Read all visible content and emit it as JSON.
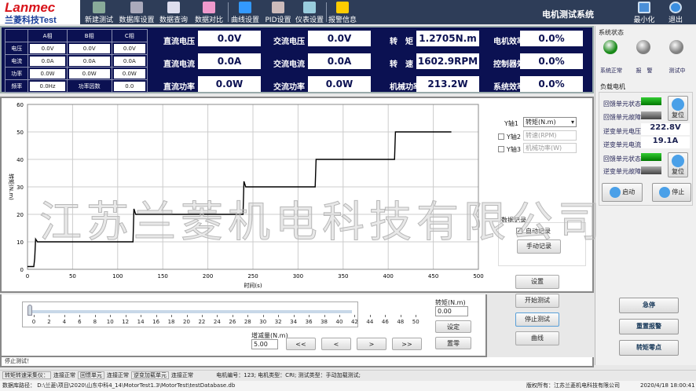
{
  "app": {
    "title": "电机测试系统",
    "logo_top": "Lanmec",
    "logo_bottom": "兰菱科技Test",
    "watermark": "江苏兰菱机电科技有限公司"
  },
  "toolbar": [
    {
      "label": "新建测试",
      "icon": "new-doc-icon"
    },
    {
      "label": "数据库设置",
      "icon": "database-icon"
    },
    {
      "label": "数据查询",
      "icon": "search-icon"
    },
    {
      "label": "数据对比",
      "icon": "compare-icon"
    },
    {
      "label": "曲线设置",
      "icon": "tools-icon"
    },
    {
      "label": "PID设置",
      "icon": "pid-icon"
    },
    {
      "label": "仪表设置",
      "icon": "meter-icon"
    },
    {
      "label": "报警信息",
      "icon": "warning-icon"
    }
  ],
  "window": {
    "minimize": "最小化",
    "exit": "退出"
  },
  "phase": {
    "headers": [
      "",
      "A相",
      "B相",
      "C相"
    ],
    "rows": [
      {
        "label": "电压",
        "values": [
          "0.0V",
          "0.0V",
          "0.0V"
        ]
      },
      {
        "label": "电流",
        "values": [
          "0.0A",
          "0.0A",
          "0.0A"
        ]
      },
      {
        "label": "功率",
        "values": [
          "0.0W",
          "0.0W",
          "0.0W"
        ]
      }
    ],
    "freq_label": "频率",
    "freq": "0.0Hz",
    "pf_label": "功率因数",
    "pf": "0.0"
  },
  "meters": [
    [
      {
        "label": "直流电压",
        "value": "0.0V"
      },
      {
        "label": "直流电流",
        "value": "0.0A"
      },
      {
        "label": "直流功率",
        "value": "0.0W"
      }
    ],
    [
      {
        "label": "交流电压",
        "value": "0.0V"
      },
      {
        "label": "交流电流",
        "value": "0.0A"
      },
      {
        "label": "交流功率",
        "value": "0.0W"
      }
    ],
    [
      {
        "label": "转　矩",
        "value": "1.2705N.m"
      },
      {
        "label": "转　速",
        "value": "1602.9RPM"
      },
      {
        "label": "机械功率",
        "value": "213.2W"
      }
    ],
    [
      {
        "label": "电机效率",
        "value": "0.0%"
      },
      {
        "label": "控制器效率",
        "value": "0.0%"
      },
      {
        "label": "系统效率",
        "value": "0.0%"
      }
    ]
  ],
  "system_status": {
    "title": "系统状态",
    "leds": [
      {
        "label": "系统正常",
        "color": "#1a8a1a"
      },
      {
        "label": "报　警",
        "color": "#808080"
      },
      {
        "label": "测试中",
        "color": "#808080"
      }
    ]
  },
  "load_motor": {
    "title": "负载电机",
    "fb_state": "回馈单元状态",
    "fb_fault": "回馈单元故障",
    "reset": "复位",
    "inv_voltage_label": "逆变单元电压",
    "inv_voltage": "222.8V",
    "inv_current_label": "逆变单元电流",
    "inv_current": "19.1A",
    "fb_state2": "回馈单元状态",
    "inv_fault": "逆变单元故障",
    "start": "启动",
    "stop": "停止"
  },
  "side_buttons": {
    "estop": "急停",
    "reset_alarm": "重置报警",
    "torque_zero": "转矩零点"
  },
  "axis_select": {
    "y1_label": "Y轴1",
    "y1": "转矩(N.m)",
    "y2_label": "Y轴2",
    "y2": "转速(RPM)",
    "y2_checked": false,
    "y3_label": "Y轴3",
    "y3": "机械功率(W)",
    "y3_checked": false
  },
  "record": {
    "title": "数据记录",
    "auto": "自动记录",
    "auto_checked": true,
    "manual": "手动记录"
  },
  "actions": {
    "settings": "设置",
    "start": "开始测试",
    "stop": "停止测试",
    "curve": "曲线"
  },
  "chart_data": {
    "type": "line",
    "xlabel": "时间(s)",
    "ylabel": "转矩(N.m)",
    "xlim": [
      0,
      500
    ],
    "ylim": [
      0,
      60
    ],
    "xticks": [
      0,
      50,
      100,
      150,
      200,
      250,
      300,
      350,
      400,
      450,
      500
    ],
    "yticks": [
      0,
      10,
      20,
      30,
      40,
      50,
      60
    ],
    "grid": true,
    "series": [
      {
        "x": [
          0,
          7,
          8,
          9,
          11,
          117,
          118,
          120,
          239,
          240,
          242,
          319,
          320,
          407,
          408,
          470
        ],
        "y": [
          1,
          1,
          4,
          11,
          10,
          10,
          22,
          20,
          20,
          32,
          30,
          30,
          40,
          40,
          50,
          50
        ]
      }
    ]
  },
  "slider": {
    "value": 0,
    "min": 0,
    "max": 50,
    "ticks": [
      "0",
      "2",
      "4",
      "6",
      "8",
      "10",
      "12",
      "14",
      "16",
      "18",
      "20",
      "22",
      "24",
      "26",
      "28",
      "30",
      "32",
      "34",
      "36",
      "38",
      "40",
      "42",
      "44",
      "46",
      "48",
      "50"
    ],
    "step_label": "增减量(N.m)",
    "step": "5.00",
    "buttons": [
      "<<",
      "<",
      ">",
      ">>"
    ],
    "torque_label": "转矩(N.m)",
    "torque": "0.00",
    "set": "设定",
    "zero": "置零"
  },
  "status_msg": "停止测试！",
  "statusbar": {
    "items": [
      "转矩转速采集仪：",
      "连接正常",
      "回馈单元",
      "连接正常",
      "逆变加载单元",
      "连接正常"
    ],
    "motor_info": "电机编号：123;  电机类型：CRI;  测试类型：手动加载测试;",
    "db_path": "数据库路径：  D:\\兰菱\\项目\\2020\\山东中科4_14\\MotorTest1.3\\MotorTest\\testDatabase.db",
    "copyright": "版权所有：江苏兰菱机电科技有限公司",
    "datetime": "2020/4/18 18:00:41"
  }
}
